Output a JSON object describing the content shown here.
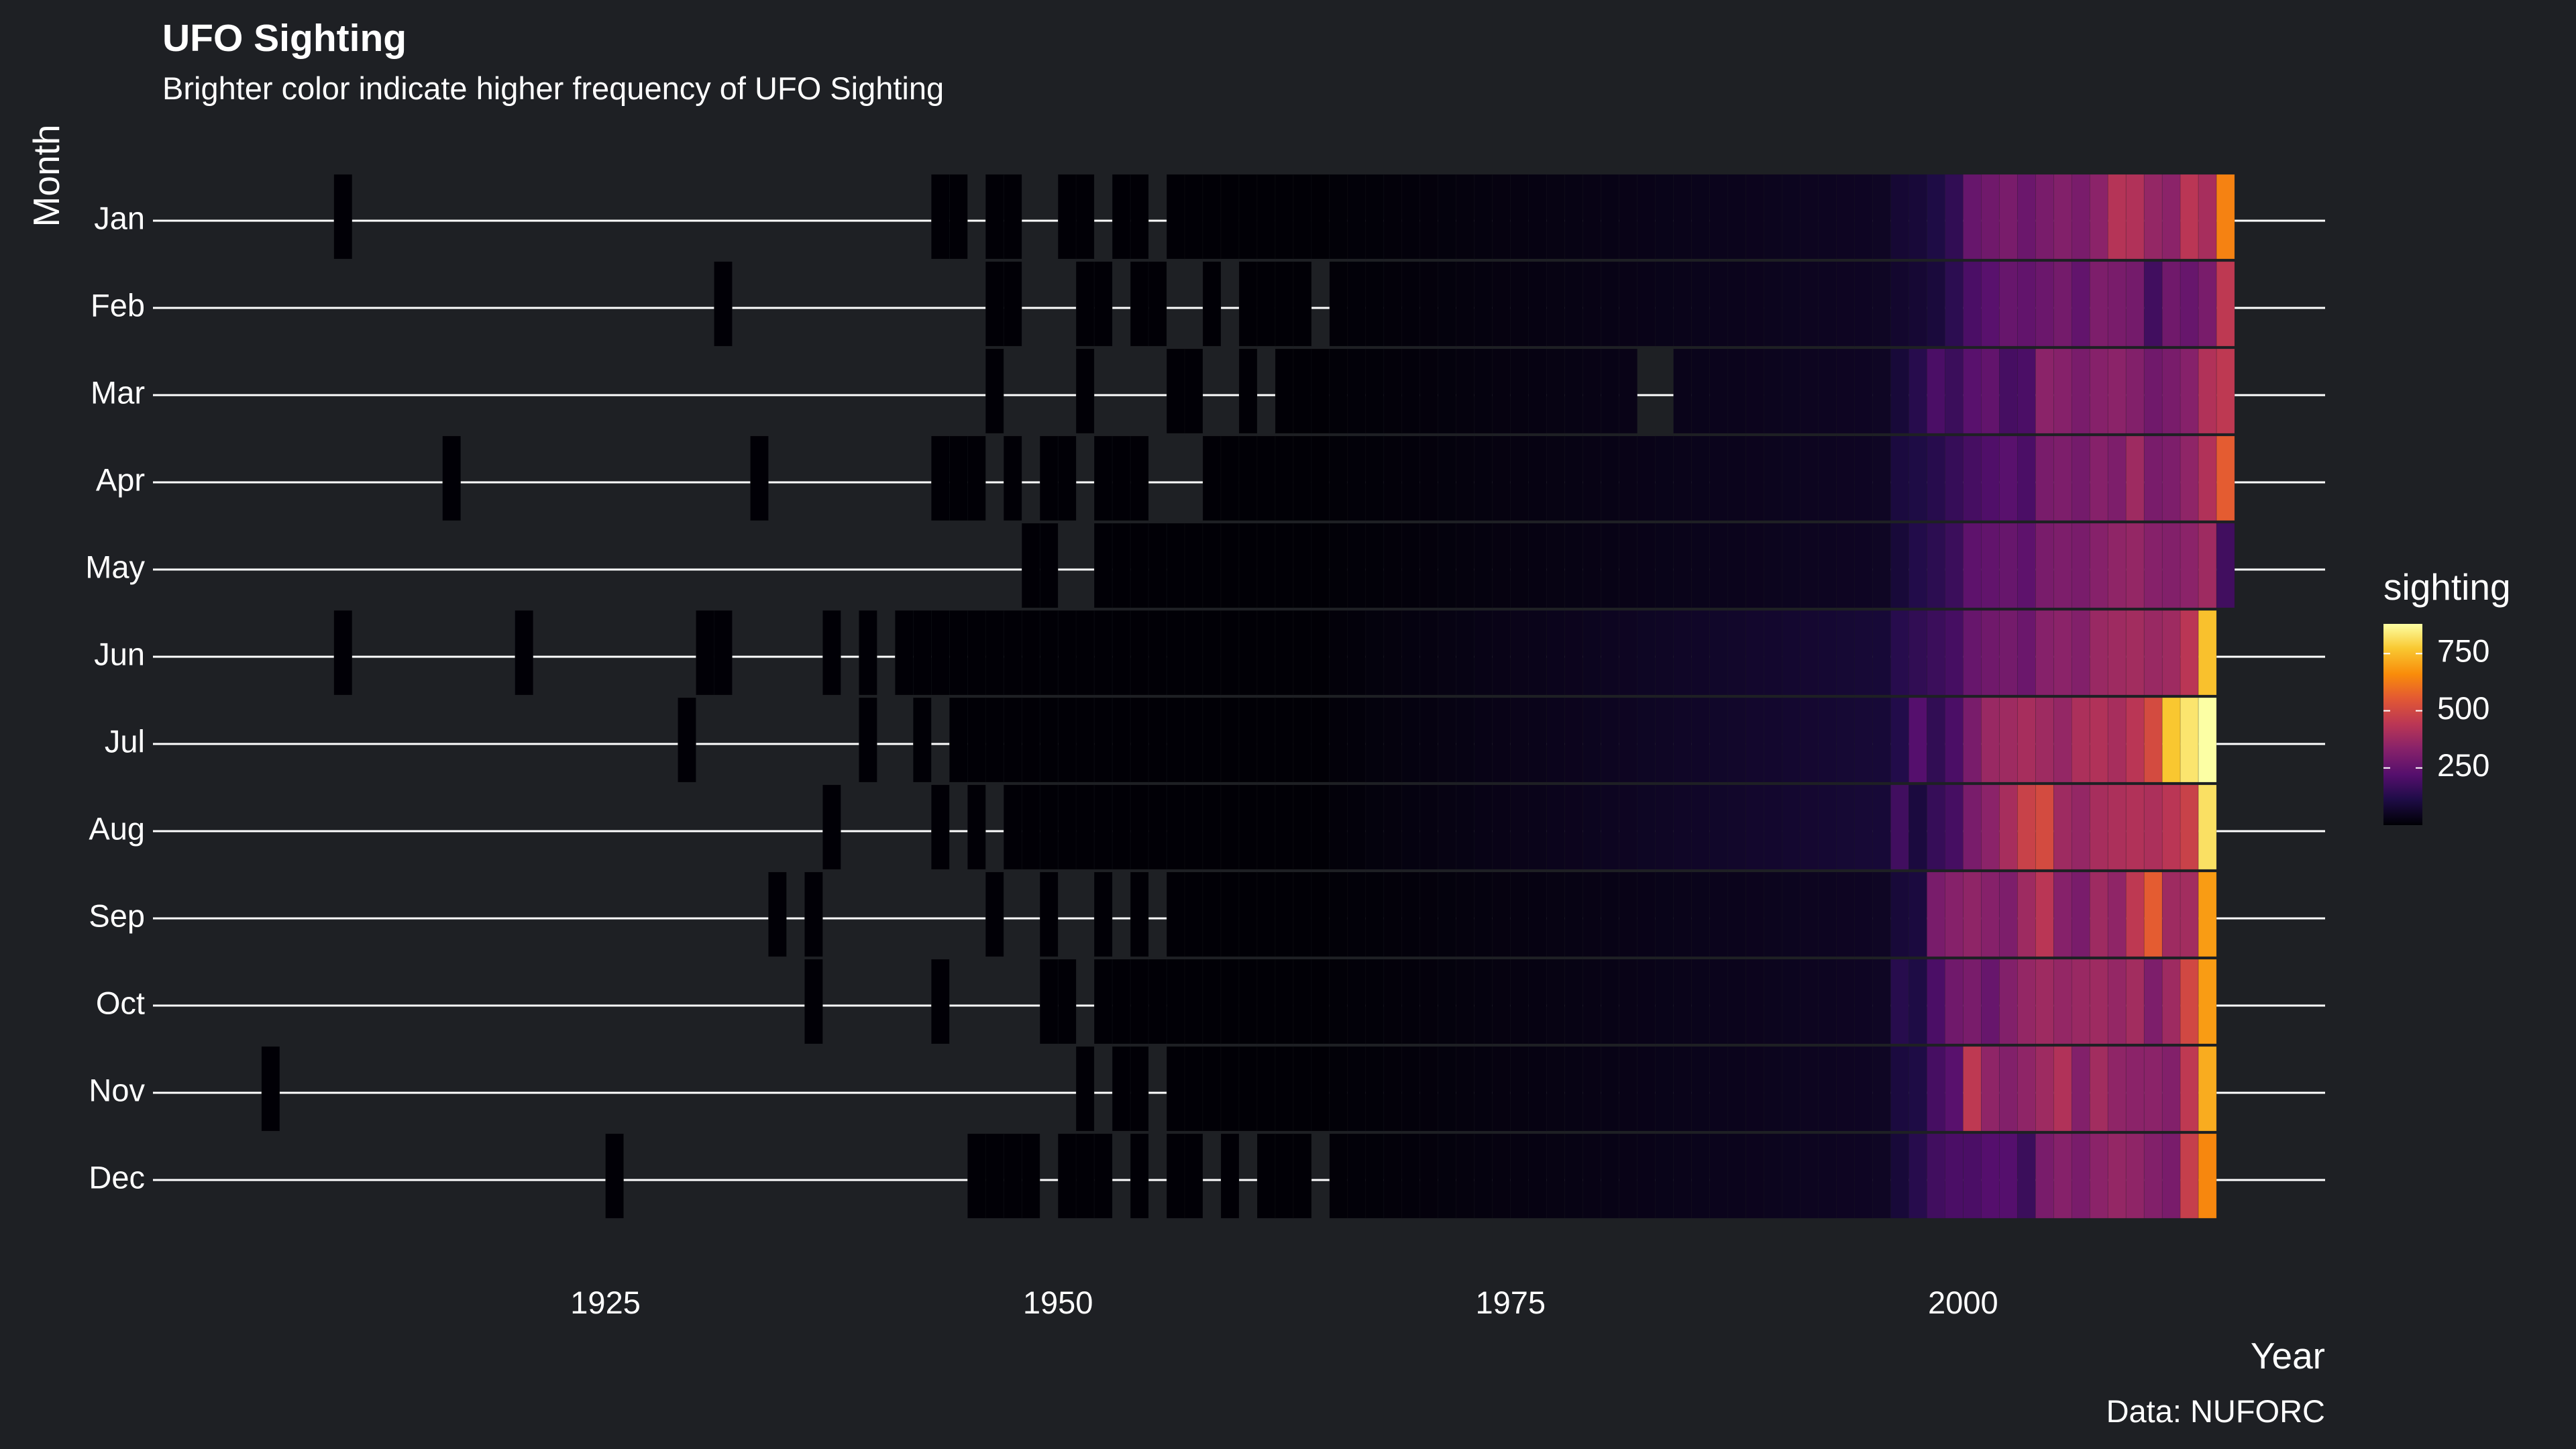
{
  "chart_data": {
    "type": "heatmap",
    "title": "UFO Sighting",
    "subtitle": "Brighter color indicate higher frequency of UFO Sighting",
    "xlabel": "Year",
    "ylabel": "Month",
    "caption": "Data: NUFORC",
    "xlim": [
      1900,
      2020
    ],
    "x_ticks": [
      1925,
      1950,
      1975,
      2000
    ],
    "months": [
      "Jan",
      "Feb",
      "Mar",
      "Apr",
      "May",
      "Jun",
      "Jul",
      "Aug",
      "Sep",
      "Oct",
      "Nov",
      "Dec"
    ],
    "legend": {
      "title": "sighting",
      "ticks": [
        250,
        500,
        750
      ],
      "range": [
        0,
        880
      ],
      "placement": "right"
    },
    "colors": {
      "background": "#1e2024",
      "grid_line": "#ffffff",
      "palette": "inferno"
    },
    "grid": "horizontal lines at each month",
    "series": [
      {
        "month": "Jan",
        "early_years": [
          1910,
          1943,
          1944,
          1946,
          1947,
          1950,
          1951,
          1953,
          1954
        ],
        "continuous_from": 1956,
        "late": {
          "1996": 80,
          "1997": 90,
          "1998": 110,
          "1999": 150,
          "2000": 260,
          "2001": 280,
          "2002": 300,
          "2003": 270,
          "2004": 300,
          "2005": 320,
          "2006": 300,
          "2007": 340,
          "2008": 430,
          "2009": 420,
          "2010": 360,
          "2011": 340,
          "2012": 440,
          "2013": 400,
          "2014": 640
        }
      },
      {
        "month": "Feb",
        "early_years": [
          1931,
          1946,
          1947,
          1951,
          1952,
          1954,
          1955,
          1958,
          1960,
          1961,
          1962,
          1963
        ],
        "continuous_from": 1965,
        "late": {
          "1996": 70,
          "1997": 80,
          "1998": 95,
          "1999": 140,
          "2000": 200,
          "2001": 230,
          "2002": 260,
          "2003": 250,
          "2004": 270,
          "2005": 290,
          "2006": 250,
          "2007": 310,
          "2008": 300,
          "2009": 290,
          "2010": 180,
          "2011": 280,
          "2012": 260,
          "2013": 300,
          "2014": 450
        }
      },
      {
        "month": "Mar",
        "early_years": [
          1946,
          1951,
          1956,
          1957,
          1960
        ],
        "continuous_from": 1962,
        "gap": [
          1982,
          1983
        ],
        "late": {
          "1996": 90,
          "1997": 130,
          "1998": 200,
          "1999": 170,
          "2000": 230,
          "2001": 250,
          "2002": 190,
          "2003": 200,
          "2004": 340,
          "2005": 330,
          "2006": 300,
          "2007": 330,
          "2008": 340,
          "2009": 320,
          "2010": 280,
          "2011": 300,
          "2012": 330,
          "2013": 420,
          "2014": 450
        }
      },
      {
        "month": "Apr",
        "early_years": [
          1916,
          1933,
          1943,
          1944,
          1945,
          1947,
          1949,
          1950,
          1952,
          1953,
          1954
        ],
        "continuous_from": 1958,
        "late": {
          "1996": 100,
          "1997": 110,
          "1998": 130,
          "1999": 160,
          "2000": 190,
          "2001": 210,
          "2002": 230,
          "2003": 200,
          "2004": 300,
          "2005": 310,
          "2006": 290,
          "2007": 330,
          "2008": 310,
          "2009": 380,
          "2010": 300,
          "2011": 310,
          "2012": 350,
          "2013": 420,
          "2014": 560
        }
      },
      {
        "month": "May",
        "early_years": [
          1948,
          1949
        ],
        "continuous_from": 1952,
        "late": {
          "1996": 90,
          "1997": 120,
          "1998": 140,
          "1999": 170,
          "2000": 240,
          "2001": 250,
          "2002": 260,
          "2003": 240,
          "2004": 300,
          "2005": 310,
          "2006": 300,
          "2007": 330,
          "2008": 350,
          "2009": 360,
          "2010": 330,
          "2011": 320,
          "2012": 340,
          "2013": 380,
          "2014": 180
        }
      },
      {
        "month": "Jun",
        "early_years": [
          1910,
          1920,
          1930,
          1931,
          1937,
          1939
        ],
        "continuous_from": 1941,
        "late": {
          "1996": 130,
          "1997": 150,
          "1998": 170,
          "1999": 190,
          "2000": 260,
          "2001": 280,
          "2002": 290,
          "2003": 270,
          "2004": 330,
          "2005": 340,
          "2006": 320,
          "2007": 370,
          "2008": 380,
          "2009": 390,
          "2010": 370,
          "2011": 380,
          "2012": 440,
          "2013": 760
        }
      },
      {
        "month": "Jul",
        "early_years": [
          1929,
          1939,
          1942
        ],
        "continuous_from": 1944,
        "late": {
          "1996": 120,
          "1997": 220,
          "1998": 150,
          "1999": 200,
          "2000": 300,
          "2001": 370,
          "2002": 380,
          "2003": 400,
          "2004": 380,
          "2005": 360,
          "2006": 410,
          "2007": 420,
          "2008": 400,
          "2009": 440,
          "2010": 510,
          "2011": 770,
          "2012": 830,
          "2013": 880
        }
      },
      {
        "month": "Aug",
        "early_years": [
          1937,
          1943,
          1945
        ],
        "continuous_from": 1947,
        "late": {
          "1996": 180,
          "1997": 100,
          "1998": 160,
          "1999": 190,
          "2000": 300,
          "2001": 340,
          "2002": 400,
          "2003": 480,
          "2004": 510,
          "2005": 380,
          "2006": 360,
          "2007": 400,
          "2008": 410,
          "2009": 420,
          "2010": 410,
          "2011": 440,
          "2012": 480,
          "2013": 820
        }
      },
      {
        "month": "Sep",
        "early_years": [
          1934,
          1936,
          1946,
          1949,
          1952,
          1954
        ],
        "continuous_from": 1956,
        "late": {
          "1996": 90,
          "1997": 100,
          "1998": 300,
          "1999": 330,
          "2000": 350,
          "2001": 330,
          "2002": 310,
          "2003": 380,
          "2004": 440,
          "2005": 330,
          "2006": 300,
          "2007": 380,
          "2008": 350,
          "2009": 450,
          "2010": 560,
          "2011": 380,
          "2012": 390,
          "2013": 690
        }
      },
      {
        "month": "Oct",
        "early_years": [
          1936,
          1943,
          1949,
          1950
        ],
        "continuous_from": 1952,
        "late": {
          "1996": 130,
          "1997": 110,
          "1998": 200,
          "1999": 280,
          "2000": 300,
          "2001": 260,
          "2002": 320,
          "2003": 360,
          "2004": 380,
          "2005": 360,
          "2006": 370,
          "2007": 380,
          "2008": 360,
          "2009": 390,
          "2010": 310,
          "2011": 380,
          "2012": 500,
          "2013": 690
        }
      },
      {
        "month": "Nov",
        "early_years": [
          1906,
          1951,
          1953,
          1954
        ],
        "continuous_from": 1956,
        "late": {
          "1996": 100,
          "1997": 110,
          "1998": 190,
          "1999": 230,
          "2000": 450,
          "2001": 350,
          "2002": 320,
          "2003": 350,
          "2004": 380,
          "2005": 420,
          "2006": 320,
          "2007": 390,
          "2008": 350,
          "2009": 340,
          "2010": 340,
          "2011": 320,
          "2012": 450,
          "2013": 720
        }
      },
      {
        "month": "Dec",
        "early_years": [
          1925,
          1945,
          1946,
          1947,
          1948,
          1950,
          1951,
          1952,
          1954,
          1956,
          1957,
          1959,
          1961,
          1962,
          1963
        ],
        "continuous_from": 1965,
        "late": {
          "1996": 90,
          "1997": 130,
          "1998": 180,
          "1999": 200,
          "2000": 200,
          "2001": 220,
          "2002": 220,
          "2003": 170,
          "2004": 300,
          "2005": 330,
          "2006": 300,
          "2007": 340,
          "2008": 360,
          "2009": 350,
          "2010": 320,
          "2011": 300,
          "2012": 470,
          "2013": 650
        }
      }
    ]
  }
}
